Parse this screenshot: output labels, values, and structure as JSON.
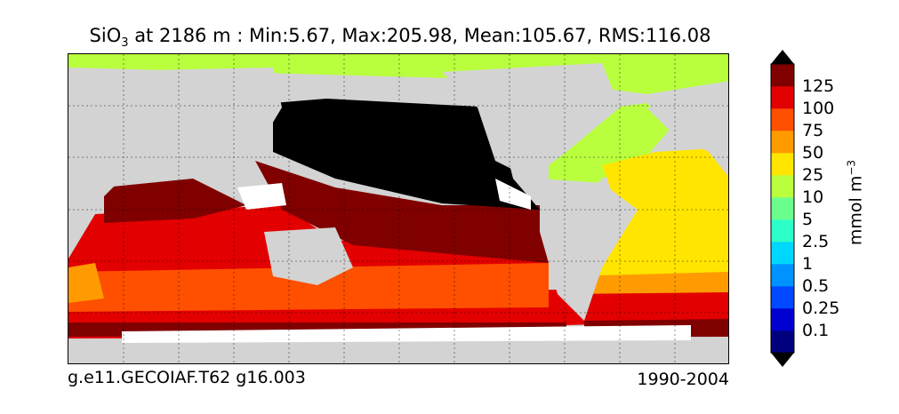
{
  "title": {
    "prefix": "SiO",
    "subscript": "3",
    "rest": " at 2186 m : Min:5.67, Max:205.98, Mean:105.67, RMS:116.08"
  },
  "footer": {
    "left": "g.e11.GECOIAF.T62 g16.003",
    "right": "1990-2004"
  },
  "colorbar": {
    "label": "mmol m",
    "label_exponent": "−3",
    "ticks": [
      "0.1",
      "0.25",
      "0.5",
      "1",
      "2.5",
      "5",
      "10",
      "25",
      "50",
      "75",
      "100",
      "125"
    ],
    "colors": [
      "#00007f",
      "#0000d0",
      "#0049ff",
      "#0093ff",
      "#00d7ff",
      "#2dffc9",
      "#6aff8d",
      "#b9ff3e",
      "#ffe500",
      "#ff9b00",
      "#ff4f00",
      "#e30000",
      "#800000"
    ],
    "extend_min_color": "#000000",
    "extend_max_color": "#000000"
  },
  "map_colors": {
    "land": "#d3d3d3",
    "no_data": "#ffffff",
    "pacific_north": "#000000"
  }
}
